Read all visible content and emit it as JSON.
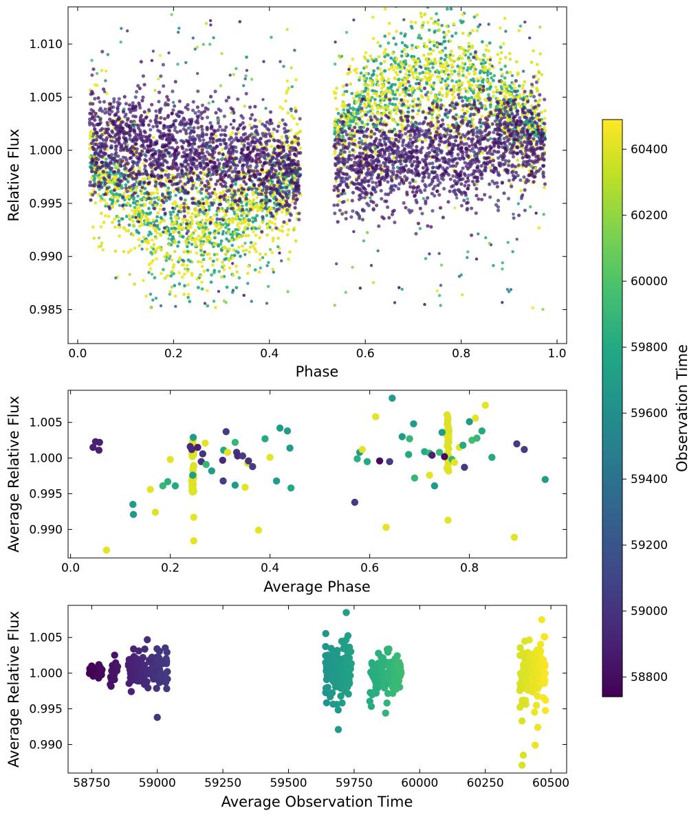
{
  "chart_data": [
    {
      "id": "panel1",
      "type": "scatter",
      "xlabel": "Phase",
      "ylabel": "Relative Flux",
      "xlim": [
        -0.02,
        1.02
      ],
      "ylim": [
        0.9818,
        1.0135
      ],
      "xticks": [
        0.0,
        0.2,
        0.4,
        0.6,
        0.8,
        1.0
      ],
      "xtick_labels": [
        "0.0",
        "0.2",
        "0.4",
        "0.6",
        "0.8",
        "1.0"
      ],
      "yticks": [
        0.985,
        0.99,
        0.995,
        1.0,
        1.005,
        1.01
      ],
      "ytick_labels": [
        "0.985",
        "0.990",
        "0.995",
        "1.000",
        "1.005",
        "1.010"
      ],
      "phase_coverage": [
        [
          0.025,
          0.465
        ],
        [
          0.535,
          0.975
        ]
      ],
      "description_groups": [
        {
          "time": 58950,
          "flux_center_at_phase_0.1": 1.0015,
          "flux_center_at_phase_0.9": 1.0005,
          "spread": 0.003
        },
        {
          "time": 59700,
          "flux_center_low_phase": 0.992,
          "flux_center_high_phase": 1.005,
          "spread": 0.003
        },
        {
          "time": 60430,
          "flux_center_low_phase": 0.994,
          "flux_center_high_phase": 1.006,
          "spread": 0.004
        }
      ]
    },
    {
      "id": "panel2",
      "type": "scatter",
      "xlabel": "Average Phase",
      "ylabel": "Average Relative Flux",
      "xlim": [
        -0.005,
        0.995
      ],
      "ylim": [
        0.986,
        1.0095
      ],
      "xticks": [
        0.0,
        0.2,
        0.4,
        0.6,
        0.8
      ],
      "xtick_labels": [
        "0.0",
        "0.2",
        "0.4",
        "0.6",
        "0.8"
      ],
      "yticks": [
        0.99,
        0.995,
        1.0,
        1.005
      ],
      "ytick_labels": [
        "0.990",
        "0.995",
        "1.000",
        "1.005"
      ],
      "points": [
        [
          0.045,
          1.0015,
          58900
        ],
        [
          0.05,
          1.0023,
          58900
        ],
        [
          0.057,
          1.0011,
          58900
        ],
        [
          0.058,
          1.0022,
          58900
        ],
        [
          0.072,
          0.9871,
          60420
        ],
        [
          0.125,
          0.9935,
          59700
        ],
        [
          0.126,
          0.9921,
          59700
        ],
        [
          0.17,
          0.9924,
          60400
        ],
        [
          0.16,
          0.9956,
          60420
        ],
        [
          0.185,
          0.9961,
          59900
        ],
        [
          0.195,
          0.9967,
          59850
        ],
        [
          0.2,
          0.9998,
          60420
        ],
        [
          0.21,
          0.9961,
          59800
        ],
        [
          0.24,
          1.0016,
          58950
        ],
        [
          0.243,
          1.0012,
          58950
        ],
        [
          0.245,
          0.9976,
          59700
        ],
        [
          0.246,
          1.0029,
          59700
        ],
        [
          0.247,
          0.9917,
          60420
        ],
        [
          0.247,
          0.9884,
          60420
        ],
        [
          0.255,
          1.0015,
          58900
        ],
        [
          0.262,
          0.9995,
          59000
        ],
        [
          0.265,
          1.0006,
          59000
        ],
        [
          0.27,
          1.0021,
          60420
        ],
        [
          0.272,
          0.9991,
          59900
        ],
        [
          0.283,
          0.9982,
          59700
        ],
        [
          0.305,
          0.9997,
          58950
        ],
        [
          0.306,
          0.9968,
          59050
        ],
        [
          0.307,
          1.0011,
          59800
        ],
        [
          0.312,
          1.0037,
          59050
        ],
        [
          0.315,
          1.0008,
          60420
        ],
        [
          0.33,
          1.0022,
          59900
        ],
        [
          0.333,
          1.0008,
          59000
        ],
        [
          0.335,
          1.0003,
          58950
        ],
        [
          0.33,
          0.9962,
          59700
        ],
        [
          0.345,
          1.0003,
          59050
        ],
        [
          0.35,
          0.9959,
          60420
        ],
        [
          0.355,
          0.9993,
          60420
        ],
        [
          0.357,
          0.9996,
          59000
        ],
        [
          0.365,
          0.9988,
          59050
        ],
        [
          0.377,
          0.9899,
          60420
        ],
        [
          0.39,
          1.0027,
          59800
        ],
        [
          0.4,
          1.0001,
          60420
        ],
        [
          0.413,
          0.9968,
          59700
        ],
        [
          0.42,
          1.0042,
          59700
        ],
        [
          0.435,
          1.0038,
          59700
        ],
        [
          0.44,
          1.0014,
          59700
        ],
        [
          0.442,
          0.9958,
          59800
        ],
        [
          0.57,
          0.9938,
          59050
        ],
        [
          0.575,
          0.9999,
          59850
        ],
        [
          0.58,
          1.0008,
          59700
        ],
        [
          0.585,
          1.0012,
          60420
        ],
        [
          0.595,
          0.9995,
          59800
        ],
        [
          0.612,
          1.0058,
          60420
        ],
        [
          0.62,
          0.9996,
          58800
        ],
        [
          0.633,
          0.9903,
          60420
        ],
        [
          0.64,
          0.9995,
          59050
        ],
        [
          0.645,
          1.0084,
          59700
        ],
        [
          0.665,
          1.003,
          59700
        ],
        [
          0.678,
          1.0005,
          59800
        ],
        [
          0.68,
          1.0027,
          59900
        ],
        [
          0.688,
          1.0048,
          59700
        ],
        [
          0.69,
          0.9972,
          59900
        ],
        [
          0.71,
          1.0009,
          59800
        ],
        [
          0.72,
          1.0007,
          59900
        ],
        [
          0.72,
          0.9976,
          60420
        ],
        [
          0.725,
          1.0004,
          58900
        ],
        [
          0.73,
          0.9961,
          59700
        ],
        [
          0.74,
          1.0008,
          59900
        ],
        [
          0.745,
          1.0036,
          59700
        ],
        [
          0.75,
          1.0002,
          58800
        ],
        [
          0.757,
          0.9913,
          60420
        ],
        [
          0.765,
          0.9998,
          59900
        ],
        [
          0.77,
          0.9994,
          60420
        ],
        [
          0.78,
          1.0015,
          60420
        ],
        [
          0.787,
          1.0018,
          59800
        ],
        [
          0.79,
          0.9987,
          59050
        ],
        [
          0.8,
          1.0051,
          59700
        ],
        [
          0.805,
          1.0025,
          59950
        ],
        [
          0.812,
          1.0056,
          60420
        ],
        [
          0.815,
          1.0028,
          59900
        ],
        [
          0.825,
          1.0038,
          59800
        ],
        [
          0.832,
          1.0074,
          60420
        ],
        [
          0.845,
          1.0001,
          59800
        ],
        [
          0.89,
          0.9889,
          60420
        ],
        [
          0.895,
          1.002,
          59050
        ],
        [
          0.91,
          1.0012,
          59050
        ],
        [
          0.952,
          0.997,
          59700
        ]
      ],
      "vertical_clusters": [
        {
          "x": 0.245,
          "flux_min": 0.9945,
          "flux_max": 1.0028,
          "time": 60420
        },
        {
          "x": 0.757,
          "flux_min": 0.998,
          "flux_max": 1.0065,
          "time": 60420
        }
      ]
    },
    {
      "id": "panel3",
      "type": "scatter",
      "xlabel": "Average Observation Time",
      "ylabel": "Average Relative Flux",
      "xlim": [
        58660,
        60560
      ],
      "ylim": [
        0.986,
        1.0095
      ],
      "xticks": [
        58750,
        59000,
        59250,
        59500,
        59750,
        60000,
        60250,
        60500
      ],
      "xtick_labels": [
        "58750",
        "59000",
        "59250",
        "59500",
        "59750",
        "60000",
        "60250",
        "60500"
      ],
      "yticks": [
        0.99,
        0.995,
        1.0,
        1.005
      ],
      "ytick_labels": [
        "0.990",
        "0.995",
        "1.000",
        "1.005"
      ],
      "clusters": [
        {
          "t_range": [
            58740,
            58790
          ],
          "flux_center": 1.0002,
          "flux_spread": 0.0008,
          "count": 40
        },
        {
          "t_range": [
            58820,
            58850
          ],
          "flux_center": 1.0002,
          "flux_spread": 0.0014,
          "count": 20
        },
        {
          "t_range": [
            58890,
            59040
          ],
          "flux_center": 1.0003,
          "flux_spread": 0.0025,
          "count": 110
        },
        {
          "t_range": [
            59640,
            59740
          ],
          "flux_center": 1.0003,
          "flux_spread": 0.0035,
          "count": 130
        },
        {
          "t_range": [
            59810,
            59930
          ],
          "flux_center": 0.9995,
          "flux_spread": 0.0025,
          "count": 120
        },
        {
          "t_range": [
            60380,
            60480
          ],
          "flux_center": 1.0002,
          "flux_spread": 0.004,
          "count": 130
        }
      ],
      "outliers": [
        [
          59000,
          0.9938
        ],
        [
          59690,
          0.9921
        ],
        [
          59720,
          1.0085
        ],
        [
          59870,
          0.9944
        ],
        [
          60390,
          0.9871
        ],
        [
          60395,
          0.9885
        ],
        [
          60390,
          0.9933
        ],
        [
          60440,
          0.9899
        ],
        [
          60450,
          0.9924
        ],
        [
          60465,
          1.0075
        ]
      ]
    }
  ],
  "colorbar": {
    "label": "Observation Time",
    "colormap": "viridis",
    "vmin": 58740,
    "vmax": 60490,
    "ticks": [
      58800,
      59000,
      59200,
      59400,
      59600,
      59800,
      60000,
      60200,
      60400
    ],
    "tick_labels": [
      "58800",
      "59000",
      "59200",
      "59400",
      "59600",
      "59800",
      "60000",
      "60200",
      "60400"
    ]
  }
}
